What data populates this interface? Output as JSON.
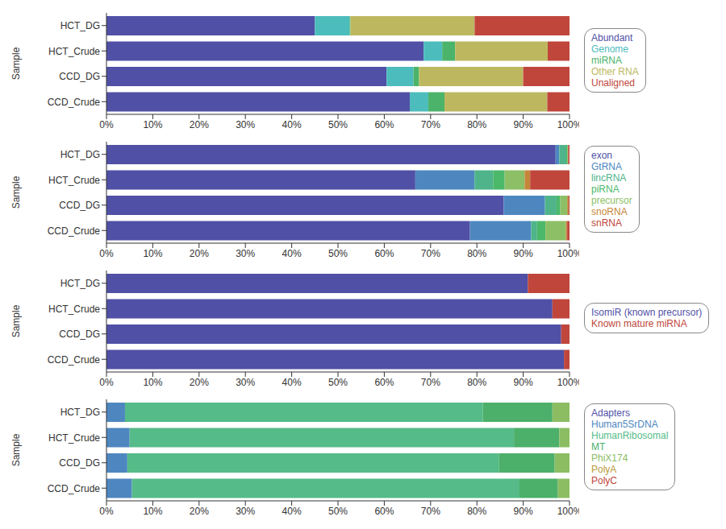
{
  "chart_data": [
    {
      "type": "bar",
      "orientation": "horizontal",
      "stacked": true,
      "legend": "right",
      "y_label": "Sample",
      "categories": [
        "HCT_DG",
        "HCT_Crude",
        "CCD_DG",
        "CCD_Crude"
      ],
      "series": [
        {
          "name": "Abundant",
          "color": "#5050a6",
          "values": [
            45,
            68.5,
            60.5,
            65.5
          ]
        },
        {
          "name": "Genome",
          "color": "#4dbcbc",
          "values": [
            7.5,
            4,
            5.8,
            4
          ]
        },
        {
          "name": "miRNA",
          "color": "#4cb36a",
          "values": [
            0.2,
            2.8,
            1.2,
            3.5
          ]
        },
        {
          "name": "Other RNA",
          "color": "#bdb860",
          "values": [
            26.8,
            20,
            22.5,
            22.2
          ]
        },
        {
          "name": "Unaligned",
          "color": "#c0463c",
          "values": [
            20.5,
            4.7,
            10,
            4.8
          ]
        }
      ],
      "xlim": [
        0,
        100
      ],
      "xticks": [
        {
          "value": 0,
          "label": "0%"
        },
        {
          "value": 10,
          "label": "10%"
        },
        {
          "value": 20,
          "label": "20%"
        },
        {
          "value": 30,
          "label": "30%"
        },
        {
          "value": 40,
          "label": "40%"
        },
        {
          "value": 50,
          "label": "50%"
        },
        {
          "value": 60,
          "label": "60%"
        },
        {
          "value": 70,
          "label": "70%"
        },
        {
          "value": 80,
          "label": "80%"
        },
        {
          "value": 90,
          "label": "90%"
        },
        {
          "value": 100,
          "label": "100%"
        }
      ]
    },
    {
      "type": "bar",
      "orientation": "horizontal",
      "stacked": true,
      "legend": "right",
      "y_label": "Sample",
      "categories": [
        "HCT_DG",
        "HCT_Crude",
        "CCD_DG",
        "CCD_Crude"
      ],
      "series": [
        {
          "name": "exon",
          "color": "#5050a6",
          "values": [
            97,
            66.7,
            85.8,
            78.5
          ]
        },
        {
          "name": "GtRNA",
          "color": "#4e87c0",
          "values": [
            0.8,
            12.8,
            8.9,
            13.2
          ]
        },
        {
          "name": "lincRNA",
          "color": "#4fb48a",
          "values": [
            1.5,
            4,
            2.5,
            1.3
          ]
        },
        {
          "name": "piRNA",
          "color": "#4cb86a",
          "values": [
            0.2,
            2.5,
            0.8,
            1.8
          ]
        },
        {
          "name": "precursor",
          "color": "#8cbf66",
          "values": [
            0.2,
            4.3,
            1.5,
            4.4
          ]
        },
        {
          "name": "snoRNA",
          "color": "#c4863a",
          "values": [
            0,
            1.2,
            0.3,
            0.3
          ]
        },
        {
          "name": "snRNA",
          "color": "#c0463c",
          "values": [
            0.3,
            8.5,
            0.2,
            0.5
          ]
        }
      ],
      "xlim": [
        0,
        100
      ],
      "xticks": [
        {
          "value": 0,
          "label": "0%"
        },
        {
          "value": 10,
          "label": "10%"
        },
        {
          "value": 20,
          "label": "20%"
        },
        {
          "value": 30,
          "label": "30%"
        },
        {
          "value": 40,
          "label": "40%"
        },
        {
          "value": 50,
          "label": "50%"
        },
        {
          "value": 60,
          "label": "60%"
        },
        {
          "value": 70,
          "label": "70%"
        },
        {
          "value": 80,
          "label": "80%"
        },
        {
          "value": 90,
          "label": "90%"
        },
        {
          "value": 100,
          "label": "100%"
        }
      ]
    },
    {
      "type": "bar",
      "orientation": "horizontal",
      "stacked": true,
      "legend": "right",
      "y_label": "Sample",
      "categories": [
        "HCT_DG",
        "HCT_Crude",
        "CCD_DG",
        "CCD_Crude"
      ],
      "series": [
        {
          "name": "IsomiR (known precursor)",
          "color": "#5050a6",
          "values": [
            91,
            96.3,
            98.2,
            98.8
          ]
        },
        {
          "name": "Known mature miRNA",
          "color": "#c0463c",
          "values": [
            9,
            3.7,
            1.8,
            1.2
          ]
        }
      ],
      "xlim": [
        0,
        100
      ],
      "xticks": [
        {
          "value": 0,
          "label": "0%"
        },
        {
          "value": 10,
          "label": "10%"
        },
        {
          "value": 20,
          "label": "20%"
        },
        {
          "value": 30,
          "label": "30%"
        },
        {
          "value": 40,
          "label": "40%"
        },
        {
          "value": 50,
          "label": "50%"
        },
        {
          "value": 60,
          "label": "60%"
        },
        {
          "value": 70,
          "label": "70%"
        },
        {
          "value": 80,
          "label": "80%"
        },
        {
          "value": 90,
          "label": "90%"
        },
        {
          "value": 100,
          "label": "100%"
        }
      ]
    },
    {
      "type": "bar",
      "orientation": "horizontal",
      "stacked": true,
      "legend": "right",
      "y_label": "Sample",
      "categories": [
        "HCT_DG",
        "HCT_Crude",
        "CCD_DG",
        "CCD_Crude"
      ],
      "series": [
        {
          "name": "Adapters",
          "color": "#5050a6",
          "values": [
            0,
            0,
            0,
            0
          ]
        },
        {
          "name": "Human5SrDNA",
          "color": "#4e87c0",
          "values": [
            4,
            5,
            4.5,
            5.5
          ]
        },
        {
          "name": "HumanRibosomal",
          "color": "#55bb88",
          "values": [
            77.3,
            83,
            80.3,
            83.7
          ]
        },
        {
          "name": "MT",
          "color": "#4caf6a",
          "values": [
            15,
            9.8,
            12,
            8.3
          ]
        },
        {
          "name": "PhiX174",
          "color": "#8cbd63",
          "values": [
            3.7,
            2.2,
            3.2,
            2.5
          ]
        },
        {
          "name": "PolyA",
          "color": "#b99a3a",
          "values": [
            0,
            0,
            0,
            0
          ]
        },
        {
          "name": "PolyC",
          "color": "#c0463c",
          "values": [
            0,
            0,
            0,
            0
          ]
        }
      ],
      "xlim": [
        0,
        100
      ],
      "xticks": [
        {
          "value": 0,
          "label": "0%"
        },
        {
          "value": 10,
          "label": "10%"
        },
        {
          "value": 20,
          "label": "20%"
        },
        {
          "value": 30,
          "label": "30%"
        },
        {
          "value": 40,
          "label": "40%"
        },
        {
          "value": 50,
          "label": "50%"
        },
        {
          "value": 60,
          "label": "60%"
        },
        {
          "value": 70,
          "label": "70%"
        },
        {
          "value": 80,
          "label": "80%"
        },
        {
          "value": 90,
          "label": "90%"
        },
        {
          "value": 100,
          "label": "100%"
        }
      ]
    }
  ]
}
